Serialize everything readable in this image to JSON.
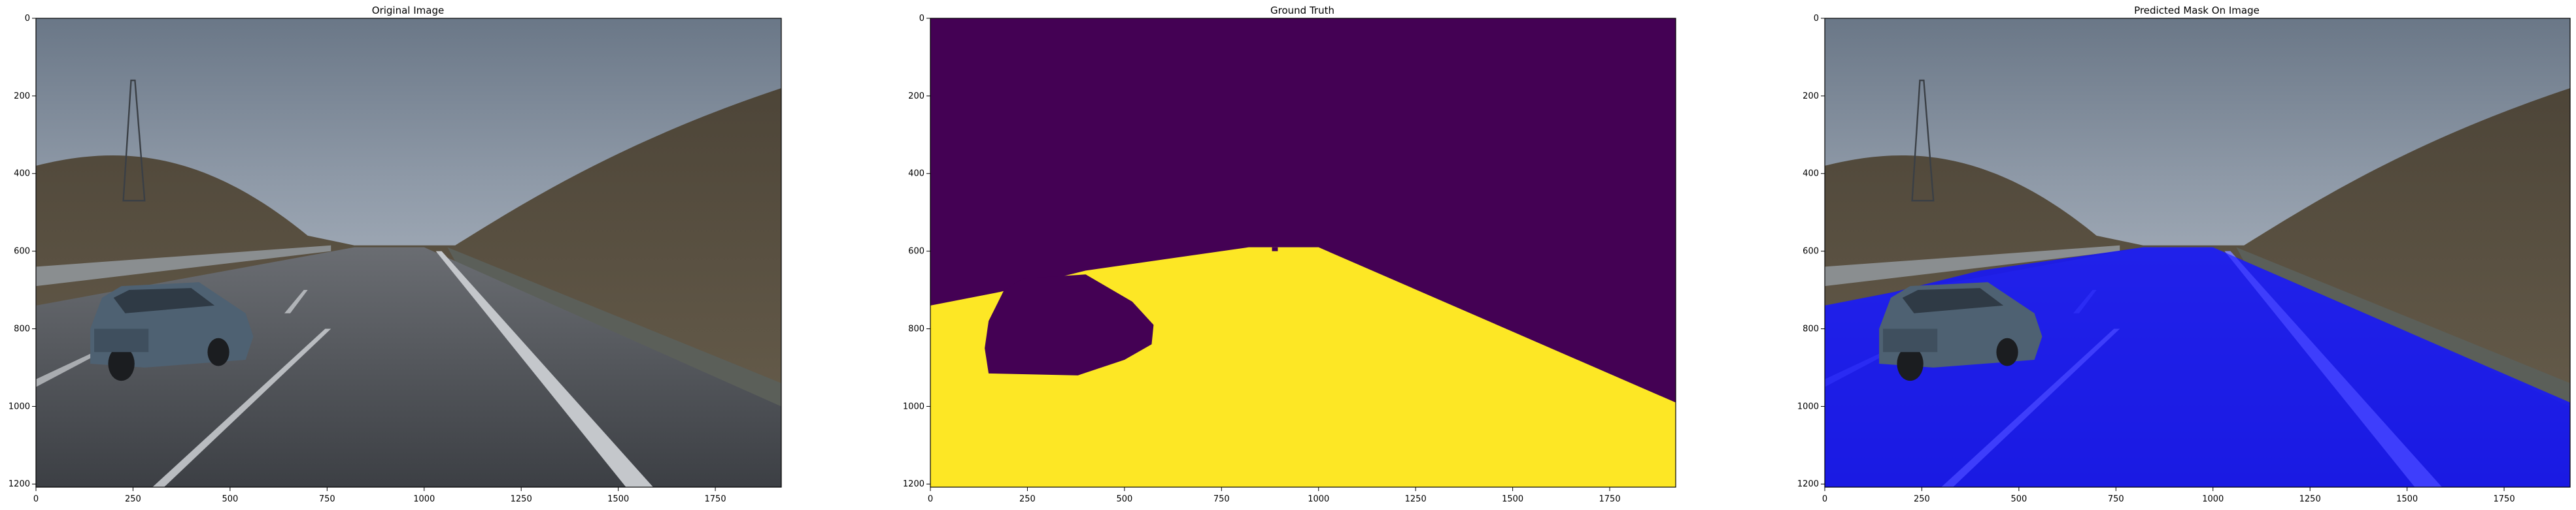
{
  "figure": {
    "panels": [
      {
        "id": "original",
        "title": "Original Image"
      },
      {
        "id": "ground_truth",
        "title": "Ground Truth"
      },
      {
        "id": "prediction",
        "title": "Predicted Mask On Image"
      }
    ]
  },
  "colors": {
    "mask_background": "#440154",
    "mask_road": "#fde725",
    "prediction_overlay": "#1414ff",
    "sky_top": "#6f7c8c",
    "sky_bottom": "#c5ccd6",
    "hill": "#5a4f3f",
    "asphalt": "#4a4d52",
    "car": "#4e6172"
  },
  "chart_data": [
    {
      "type": "image",
      "title": "Original Image",
      "xlim": [
        0,
        1920
      ],
      "ylim": [
        1208,
        0
      ],
      "xticks": [
        0,
        250,
        500,
        750,
        1000,
        1250,
        1500,
        1750
      ],
      "yticks": [
        0,
        200,
        400,
        600,
        800,
        1000,
        1200
      ],
      "xticklabels": [
        "0",
        "250",
        "500",
        "750",
        "1000",
        "1250",
        "1500",
        "1750"
      ],
      "yticklabels": [
        "0",
        "200",
        "400",
        "600",
        "800",
        "1000",
        "1200"
      ]
    },
    {
      "type": "image",
      "title": "Ground Truth",
      "xlim": [
        0,
        1920
      ],
      "ylim": [
        1208,
        0
      ],
      "xticks": [
        0,
        250,
        500,
        750,
        1000,
        1250,
        1500,
        1750
      ],
      "yticks": [
        0,
        200,
        400,
        600,
        800,
        1000,
        1200
      ],
      "xticklabels": [
        "0",
        "250",
        "500",
        "750",
        "1000",
        "1250",
        "1500",
        "1750"
      ],
      "yticklabels": [
        "0",
        "200",
        "400",
        "600",
        "800",
        "1000",
        "1200"
      ],
      "classes": [
        "background",
        "road"
      ]
    },
    {
      "type": "image",
      "title": "Predicted Mask On Image",
      "xlim": [
        0,
        1920
      ],
      "ylim": [
        1208,
        0
      ],
      "xticks": [
        0,
        250,
        500,
        750,
        1000,
        1250,
        1500,
        1750
      ],
      "yticks": [
        0,
        200,
        400,
        600,
        800,
        1000,
        1200
      ],
      "xticklabels": [
        "0",
        "250",
        "500",
        "750",
        "1000",
        "1250",
        "1500",
        "1750"
      ],
      "yticklabels": [
        "0",
        "200",
        "400",
        "600",
        "800",
        "1000",
        "1200"
      ]
    }
  ]
}
